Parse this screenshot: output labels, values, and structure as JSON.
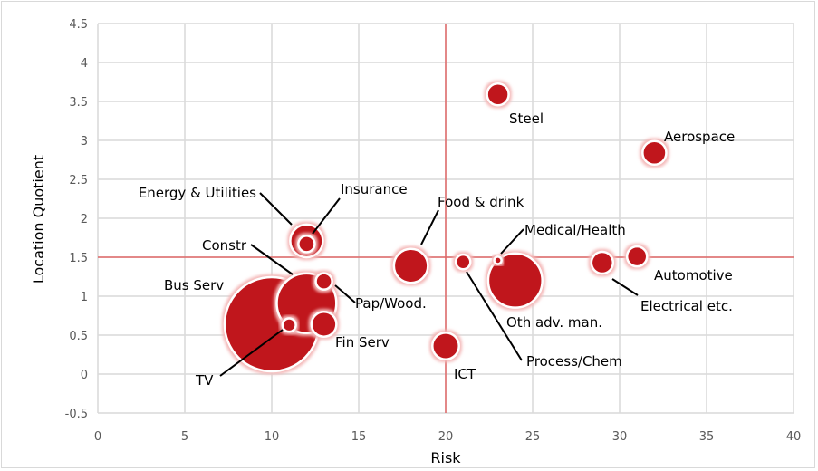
{
  "chart_data": {
    "type": "bubble",
    "title": "",
    "xlabel": "Risk",
    "ylabel": "Location Quotient",
    "xlim": [
      0,
      40
    ],
    "ylim": [
      -0.5,
      4.5
    ],
    "xticks": [
      "0",
      "5",
      "10",
      "15",
      "20",
      "25",
      "30",
      "35",
      "40"
    ],
    "yticks": [
      "-0.5",
      "0",
      "0.5",
      "1",
      "1.5",
      "2",
      "2.5",
      "3",
      "3.5",
      "4",
      "4.5"
    ],
    "grid": true,
    "legend": "none",
    "reference_lines": {
      "x": 20,
      "y": 1.5
    },
    "colors": {
      "bubble": "#C0141A",
      "reference_line": "#E06666",
      "grid": "#D9D9D9"
    },
    "size_note_units": "relative bubble area",
    "points": [
      {
        "label": "Bus Serv",
        "x": 10,
        "y": 0.64,
        "size": 100
      },
      {
        "label": "Constr",
        "x": 12,
        "y": 0.91,
        "size": 40
      },
      {
        "label": "Oth adv. man.",
        "x": 24,
        "y": 1.2,
        "size": 33
      },
      {
        "label": "Food & drink",
        "x": 18,
        "y": 1.39,
        "size": 13
      },
      {
        "label": "Energy & Utilities",
        "x": 12,
        "y": 1.71,
        "size": 12
      },
      {
        "label": "ICT",
        "x": 20,
        "y": 0.36,
        "size": 8
      },
      {
        "label": "Fin Serv",
        "x": 13,
        "y": 0.64,
        "size": 7
      },
      {
        "label": "Aerospace",
        "x": 32,
        "y": 2.84,
        "size": 6.3
      },
      {
        "label": "Steel",
        "x": 23,
        "y": 3.59,
        "size": 5.3
      },
      {
        "label": "Electrical etc.",
        "x": 29,
        "y": 1.43,
        "size": 5.3
      },
      {
        "label": "Automotive",
        "x": 31,
        "y": 1.51,
        "size": 4.5
      },
      {
        "label": "Insurance",
        "x": 12,
        "y": 1.67,
        "size": 3
      },
      {
        "label": "Pap/Wood.",
        "x": 13,
        "y": 1.19,
        "size": 3
      },
      {
        "label": "Process/Chem",
        "x": 21,
        "y": 1.44,
        "size": 2.4
      },
      {
        "label": "TV",
        "x": 11,
        "y": 0.63,
        "size": 2
      },
      {
        "label": "Medical/Health",
        "x": 23,
        "y": 1.46,
        "size": 0.6
      }
    ]
  }
}
